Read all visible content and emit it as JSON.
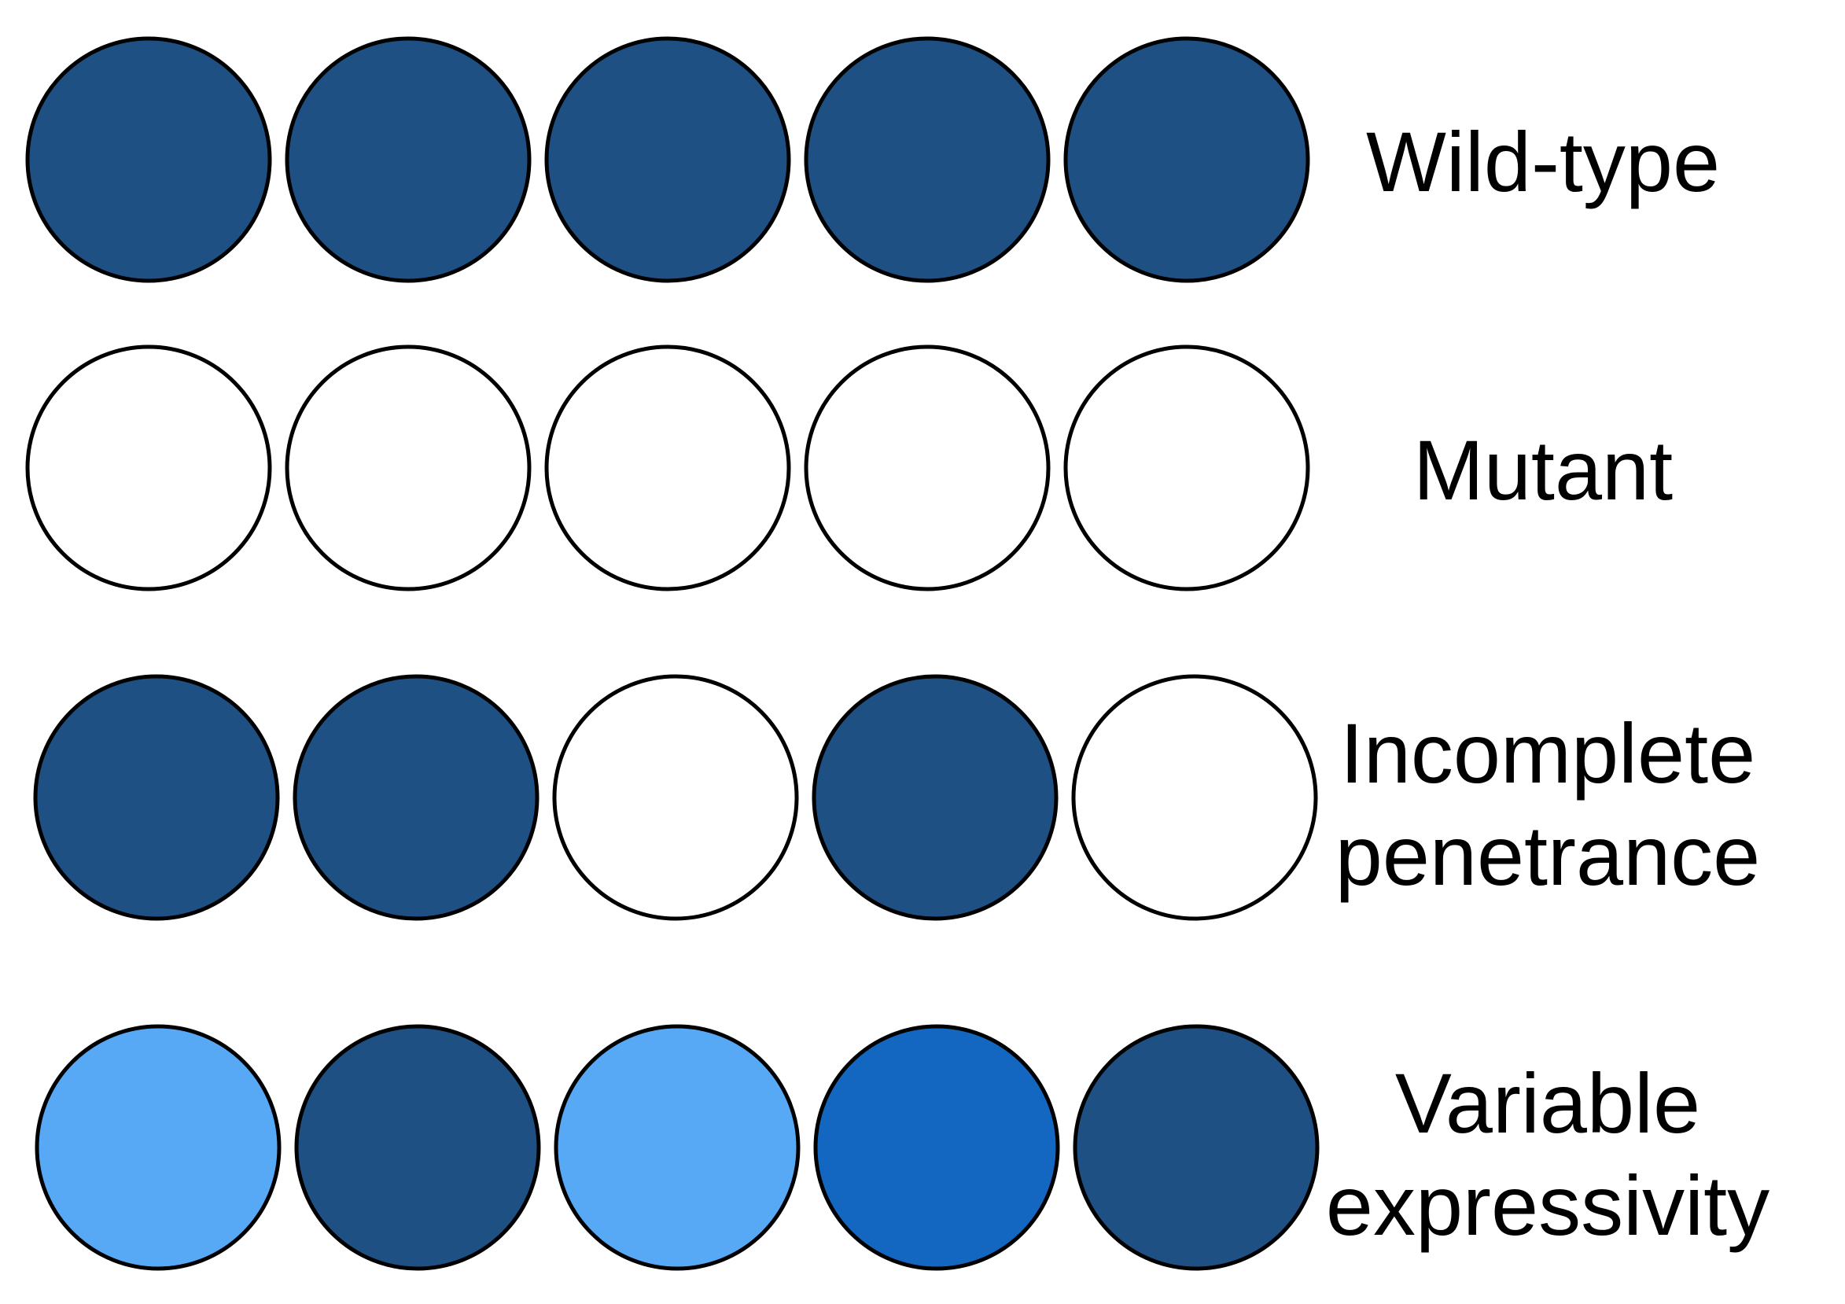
{
  "colors": {
    "dark": "#1e5084",
    "white": "#ffffff",
    "light": "#57a8f5",
    "medium": "#1467c0",
    "stroke": "#000000"
  },
  "rows": [
    {
      "id": "wild-type",
      "label_lines": [
        "Wild-type"
      ],
      "fills": [
        "dark",
        "dark",
        "dark",
        "dark",
        "dark"
      ]
    },
    {
      "id": "mutant",
      "label_lines": [
        "Mutant"
      ],
      "fills": [
        "white",
        "white",
        "white",
        "white",
        "white"
      ]
    },
    {
      "id": "incomplete-penetrance",
      "label_lines": [
        "Incomplete",
        "penetrance"
      ],
      "fills": [
        "dark",
        "dark",
        "white",
        "dark",
        "white"
      ]
    },
    {
      "id": "variable-expressivity",
      "label_lines": [
        "Variable",
        "expressivity"
      ],
      "fills": [
        "light",
        "dark",
        "light",
        "medium",
        "dark"
      ]
    }
  ]
}
